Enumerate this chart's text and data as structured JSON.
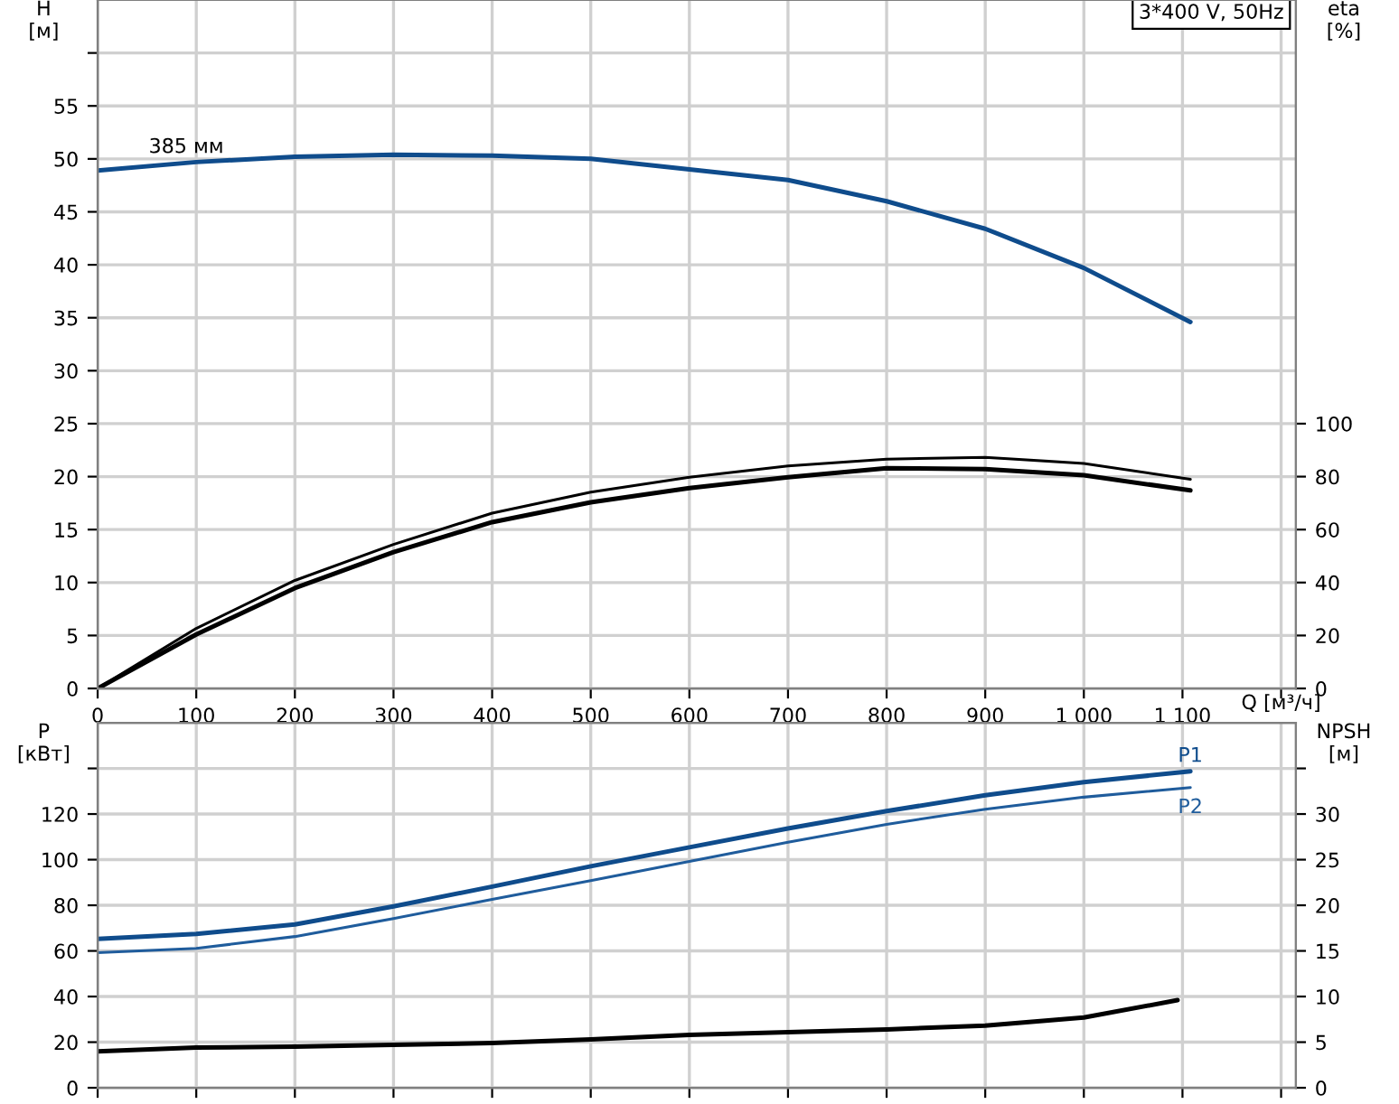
{
  "chart_data": [
    {
      "type": "line",
      "title": "3*400 V, 50Hz",
      "ylabel": "H\n[м]",
      "y2label": "eta\n[%]",
      "xlabel": "Q [м³/ч]",
      "xlim": [
        0,
        1215
      ],
      "xticks": [
        0,
        100,
        200,
        300,
        400,
        500,
        600,
        700,
        800,
        900,
        {
          "value": 1000,
          "label": "1 000"
        },
        {
          "value": 1100,
          "label": "1 100"
        },
        {
          "value": 1200,
          "label": null
        }
      ],
      "ylim": [
        0,
        65
      ],
      "yticks": [
        0,
        5,
        10,
        15,
        20,
        25,
        30,
        35,
        40,
        45,
        50,
        55,
        {
          "value": 60,
          "label": null
        }
      ],
      "y2lim": [
        0,
        260
      ],
      "y2ticks": [
        0,
        20,
        40,
        60,
        80,
        100
      ],
      "grid": true,
      "line_style": "solid",
      "marker": "none",
      "annotations": [
        {
          "text": "385 мм",
          "x": 100,
          "y": 49.7
        }
      ],
      "series": [
        {
          "color": "#0f4c8c",
          "x": [
            0,
            100,
            200,
            300,
            400,
            500,
            600,
            700,
            800,
            900,
            1000,
            1108
          ],
          "values": [
            48.9,
            49.7,
            50.2,
            50.4,
            50.3,
            50.0,
            49.0,
            48.0,
            46.0,
            43.4,
            39.7,
            34.6
          ]
        },
        {
          "color": "#000000",
          "axis": "y2",
          "x": [
            0,
            100,
            200,
            300,
            400,
            500,
            600,
            700,
            800,
            900,
            1000,
            1108
          ],
          "values": [
            0,
            22.7,
            40.8,
            54.4,
            66.2,
            74.1,
            79.8,
            84,
            86.6,
            87.3,
            85,
            79
          ]
        },
        {
          "color": "#000000",
          "axis": "y2",
          "x": [
            0,
            100,
            200,
            300,
            400,
            500,
            600,
            700,
            800,
            900,
            1000,
            1108
          ],
          "values": [
            0,
            20.4,
            37.9,
            51.5,
            62.8,
            70.3,
            75.7,
            79.8,
            83.2,
            82.8,
            80.5,
            74.8
          ]
        }
      ]
    },
    {
      "type": "line",
      "ylabel": "P\n[кВт]",
      "y2label": "NPSH\n[м]",
      "tick_labels": "y",
      "xlim": [
        0,
        1215
      ],
      "xticks": [
        0,
        100,
        200,
        300,
        400,
        500,
        600,
        700,
        800,
        900,
        1000,
        1100,
        1200
      ],
      "ylim": [
        0,
        160
      ],
      "yticks": [
        0,
        20,
        40,
        60,
        80,
        100,
        120,
        {
          "value": 140,
          "label": null
        }
      ],
      "y2lim": [
        0,
        40
      ],
      "y2ticks": [
        0,
        5,
        10,
        15,
        20,
        25,
        30,
        {
          "value": 35,
          "label": null
        }
      ],
      "grid": true,
      "line_style": "solid",
      "marker": "none",
      "series": [
        {
          "name": "P1",
          "color": "#0f4c8c",
          "x": [
            0,
            100,
            200,
            300,
            400,
            500,
            600,
            700,
            800,
            900,
            1000,
            1108
          ],
          "values": [
            65.3,
            67.4,
            71.6,
            79.5,
            88.2,
            97.1,
            105.4,
            113.7,
            121.3,
            128.2,
            134,
            138.7
          ]
        },
        {
          "name": "P2",
          "color": "#1f5c9c",
          "x": [
            0,
            100,
            200,
            300,
            400,
            500,
            600,
            700,
            800,
            900,
            1000,
            1108
          ],
          "values": [
            59.2,
            61.1,
            66.3,
            74.2,
            82.6,
            90.8,
            99.2,
            107.6,
            115.5,
            122.1,
            127.4,
            131.6
          ]
        },
        {
          "color": "#000000",
          "axis": "y2",
          "x": [
            0,
            100,
            200,
            300,
            400,
            500,
            600,
            700,
            800,
            900,
            1000,
            1095
          ],
          "values": [
            4.0,
            4.4,
            4.5,
            4.7,
            4.9,
            5.3,
            5.8,
            6.1,
            6.4,
            6.8,
            7.7,
            9.6
          ]
        }
      ]
    }
  ]
}
